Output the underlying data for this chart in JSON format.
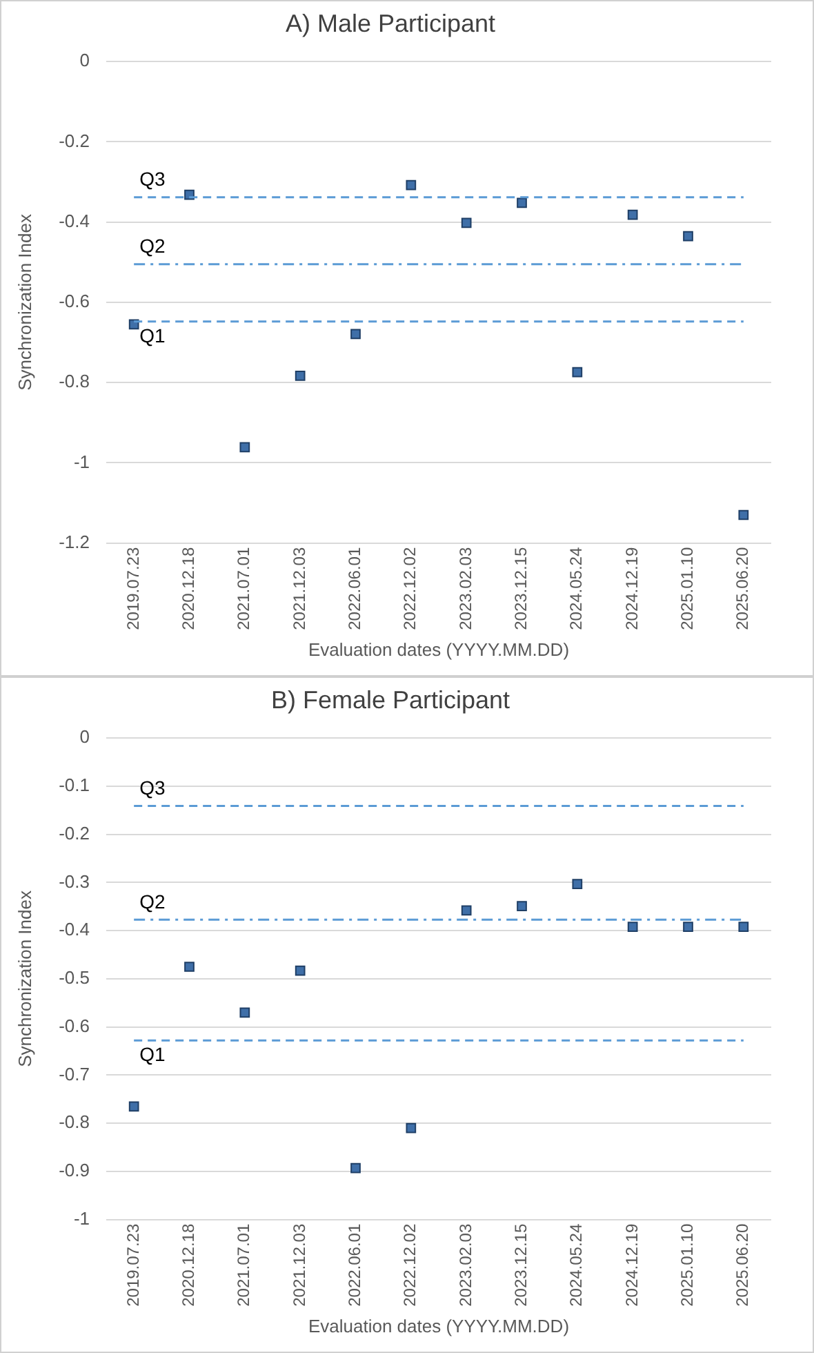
{
  "chart_data": [
    {
      "type": "scatter",
      "title": "A) Male Participant",
      "xlabel": "Evaluation dates (YYYY.MM.DD)",
      "ylabel": "Synchronization Index",
      "categories": [
        "2019.07.23",
        "2020.12.18",
        "2021.07.01",
        "2021.12.03",
        "2022.06.01",
        "2022.12.02",
        "2023.02.03",
        "2023.12.15",
        "2024.05.24",
        "2024.12.19",
        "2025.01.10",
        "2025.06.20"
      ],
      "values": [
        -0.655,
        -0.332,
        -0.961,
        -0.783,
        -0.679,
        -0.308,
        -0.402,
        -0.352,
        -0.774,
        -0.382,
        -0.435,
        -1.13
      ],
      "color": "#3f6fa8",
      "marker": "square",
      "ylim": [
        -1.2,
        0
      ],
      "yticks": [
        0,
        -0.2,
        -0.4,
        -0.6,
        -0.8,
        -1,
        -1.2
      ],
      "grid": "y",
      "legend": false,
      "ref_lines": [
        {
          "axis": "y",
          "value": -0.338,
          "label": "Q3",
          "color": "#5b9bd5",
          "line_style": "dashed"
        },
        {
          "axis": "y",
          "value": -0.505,
          "label": "Q2",
          "color": "#5b9bd5",
          "line_style": "dashdot"
        },
        {
          "axis": "y",
          "value": -0.648,
          "label": "Q1",
          "color": "#5b9bd5",
          "line_style": "dashed"
        }
      ]
    },
    {
      "type": "scatter",
      "title": "B) Female Participant",
      "xlabel": "Evaluation dates (YYYY.MM.DD)",
      "ylabel": "Synchronization Index",
      "categories": [
        "2019.07.23",
        "2020.12.18",
        "2021.07.01",
        "2021.12.03",
        "2022.06.01",
        "2022.12.02",
        "2023.02.03",
        "2023.12.15",
        "2024.05.24",
        "2024.12.19",
        "2025.01.10",
        "2025.06.20"
      ],
      "values": [
        -0.765,
        -0.475,
        -0.57,
        -0.483,
        -0.893,
        -0.81,
        -0.358,
        -0.349,
        -0.303,
        -0.392,
        -0.392,
        -0.392
      ],
      "color": "#3f6fa8",
      "marker": "square",
      "ylim": [
        -1,
        0
      ],
      "yticks": [
        0,
        -0.1,
        -0.2,
        -0.3,
        -0.4,
        -0.5,
        -0.6,
        -0.7,
        -0.8,
        -0.9,
        -1
      ],
      "grid": "y",
      "legend": false,
      "ref_lines": [
        {
          "axis": "y",
          "value": -0.141,
          "label": "Q3",
          "color": "#5b9bd5",
          "line_style": "dashed"
        },
        {
          "axis": "y",
          "value": -0.377,
          "label": "Q2",
          "color": "#5b9bd5",
          "line_style": "dashdot"
        },
        {
          "axis": "y",
          "value": -0.628,
          "label": "Q1",
          "color": "#5b9bd5",
          "line_style": "dashed"
        }
      ]
    }
  ]
}
